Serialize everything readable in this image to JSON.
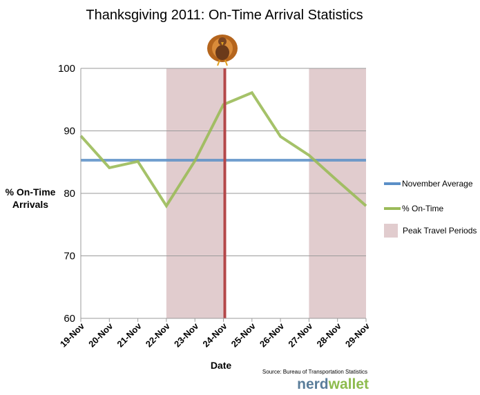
{
  "chart_data": {
    "type": "line",
    "title": "Thanksgiving 2011: On-Time Arrival Statistics",
    "xlabel": "Date",
    "ylabel": [
      "% On-Time",
      "Arrivals"
    ],
    "ylim": [
      60,
      100
    ],
    "yticks": [
      60,
      70,
      80,
      90,
      100
    ],
    "grid": true,
    "categories": [
      "19-Nov",
      "20-Nov",
      "21-Nov",
      "22-Nov",
      "23-Nov",
      "24-Nov",
      "25-Nov",
      "26-Nov",
      "27-Nov",
      "28-Nov",
      "29-Nov"
    ],
    "series": [
      {
        "name": "November Average",
        "color": "#5b8fc7",
        "values": [
          85.3,
          85.3,
          85.3,
          85.3,
          85.3,
          85.3,
          85.3,
          85.3,
          85.3,
          85.3,
          85.3
        ]
      },
      {
        "name": "% On-Time",
        "color": "#9bbb59",
        "values": [
          89.2,
          84.1,
          85.1,
          78.0,
          85.2,
          94.2,
          96.1,
          89.1,
          86.1,
          82.0,
          78.0
        ]
      }
    ],
    "shaded_regions": {
      "name": "Peak Travel Periods",
      "color": "#c9a3a6",
      "ranges": [
        [
          "22-Nov",
          "24-Nov"
        ],
        [
          "27-Nov",
          "29-Nov"
        ]
      ]
    },
    "marker_line": {
      "at": "24-Nov",
      "color": "#b4484a"
    },
    "legend_position": "right",
    "source": "Source: Bureau of Transportation Statistics",
    "brand": {
      "part1": "nerd",
      "part2": "wallet",
      "color1": "#5a7d9a",
      "color2": "#8dbb4d"
    }
  }
}
